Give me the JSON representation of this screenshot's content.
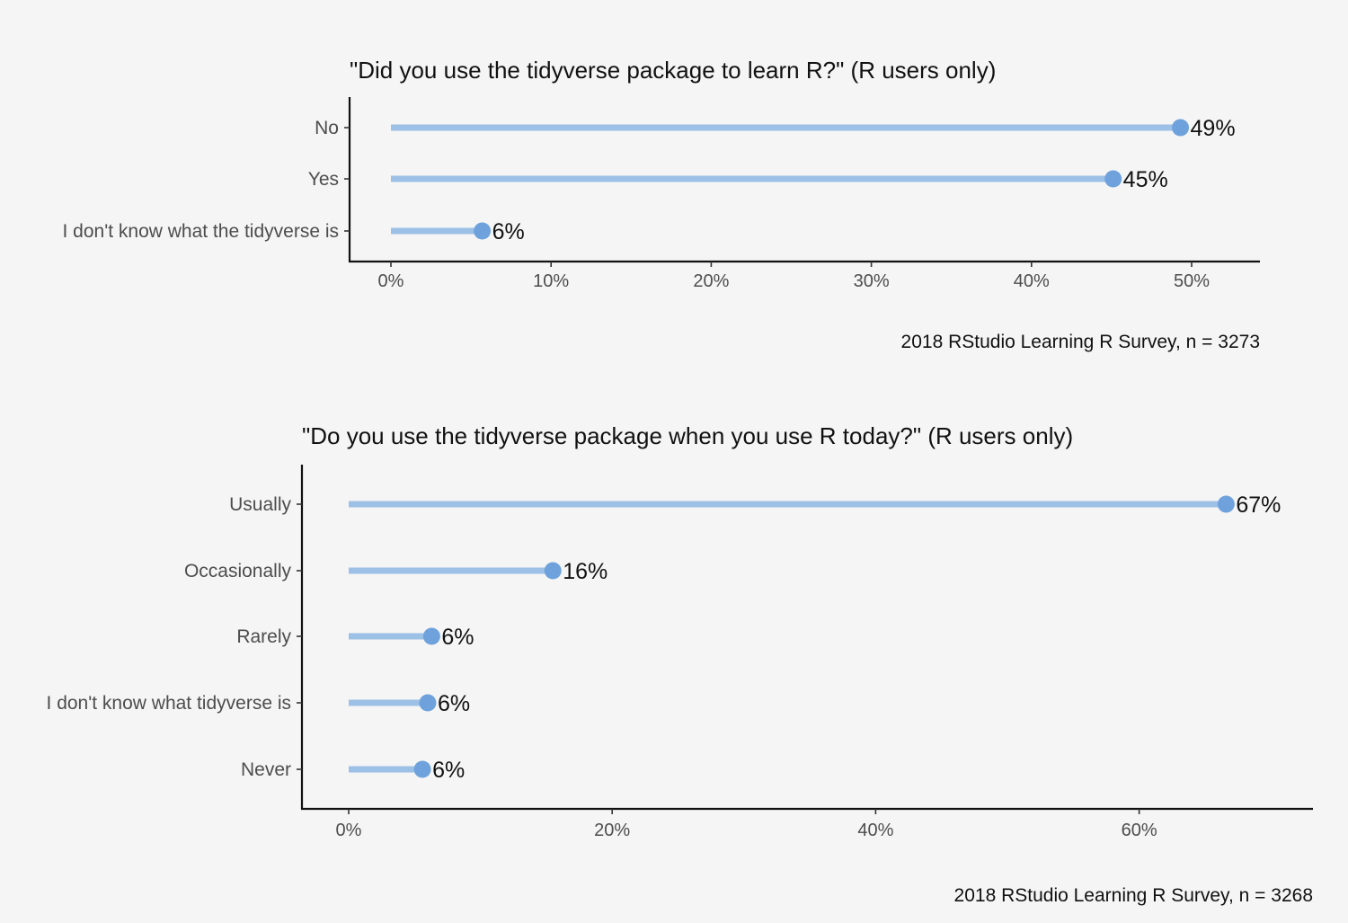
{
  "chart_data": [
    {
      "type": "lollipop",
      "title": "\"Did you use the tidyverse package to learn R?\" (R users only)",
      "caption": "2018 RStudio Learning R Survey, n = 3273",
      "xlabel": "",
      "ylabel": "",
      "xlim": [
        0,
        0.54
      ],
      "x_ticks": [
        0,
        0.1,
        0.2,
        0.3,
        0.4,
        0.5
      ],
      "x_tick_labels": [
        "0%",
        "10%",
        "20%",
        "30%",
        "40%",
        "50%"
      ],
      "categories": [
        "No",
        "Yes",
        "I don't know what the tidyverse is"
      ],
      "values": [
        0.493,
        0.451,
        0.057
      ],
      "value_labels": [
        "49%",
        "45%",
        "6%"
      ],
      "grid": false
    },
    {
      "type": "lollipop",
      "title": "\"Do you use the tidyverse package when you use R today?\" (R users only)",
      "caption": "2018 RStudio Learning R Survey, n = 3268",
      "xlabel": "",
      "ylabel": "",
      "xlim": [
        0,
        0.7
      ],
      "x_ticks": [
        0,
        0.2,
        0.4,
        0.6
      ],
      "x_tick_labels": [
        "0%",
        "20%",
        "40%",
        "60%"
      ],
      "categories": [
        "Usually",
        "Occasionally",
        "Rarely",
        "I don't know what tidyverse is",
        "Never"
      ],
      "values": [
        0.666,
        0.155,
        0.063,
        0.06,
        0.056
      ],
      "value_labels": [
        "67%",
        "16%",
        "6%",
        "6%",
        "6%"
      ],
      "grid": false
    }
  ],
  "colors": {
    "background": "#f5f5f5",
    "stem": "#9dc0e6",
    "point": "#6fa2dc",
    "axis": "#111111",
    "label": "#4d4d4d"
  }
}
